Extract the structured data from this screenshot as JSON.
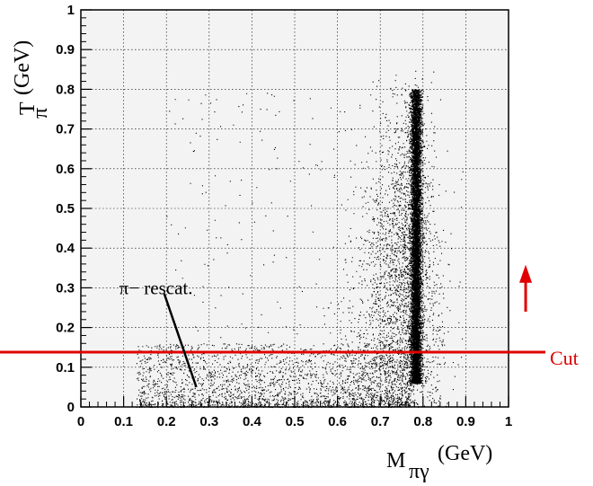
{
  "chart_data": {
    "type": "scatter",
    "title": "",
    "xlabel": "M",
    "xlabel_sub": "πγ",
    "xlabel_unit": "(GeV)",
    "ylabel": "T",
    "ylabel_sub": "π",
    "ylabel_unit": "(GeV)",
    "xlim": [
      0,
      1
    ],
    "ylim": [
      0,
      1
    ],
    "x_ticks": [
      "0",
      "0.1",
      "0.2",
      "0.3",
      "0.4",
      "0.5",
      "0.6",
      "0.7",
      "0.8",
      "0.9",
      "1"
    ],
    "y_ticks": [
      "0",
      "0.1",
      "0.2",
      "0.3",
      "0.4",
      "0.5",
      "0.6",
      "0.7",
      "0.8",
      "0.9",
      "1"
    ],
    "grid": true,
    "cut_line": {
      "y": 0.138,
      "label": "Cut",
      "color": "#e00000"
    },
    "cut_arrow": {
      "x": 1.04,
      "y_from": 0.24,
      "y_to": 0.34
    },
    "annotation": {
      "text": "π− rescat.",
      "text_at": [
        0.1,
        0.3
      ],
      "line_from": [
        0.195,
        0.285
      ],
      "line_to": [
        0.27,
        0.05
      ]
    },
    "distribution": {
      "peak_mass": 0.783,
      "peak_width": 0.006,
      "peak_tmin": 0.06,
      "peak_tmax": 0.8,
      "diffuse_xrange": [
        0.6,
        0.83
      ],
      "diffuse_tmax": 0.86,
      "rescatter_xrange": [
        0.13,
        0.77
      ],
      "rescatter_trange": [
        0.0,
        0.16
      ]
    }
  }
}
